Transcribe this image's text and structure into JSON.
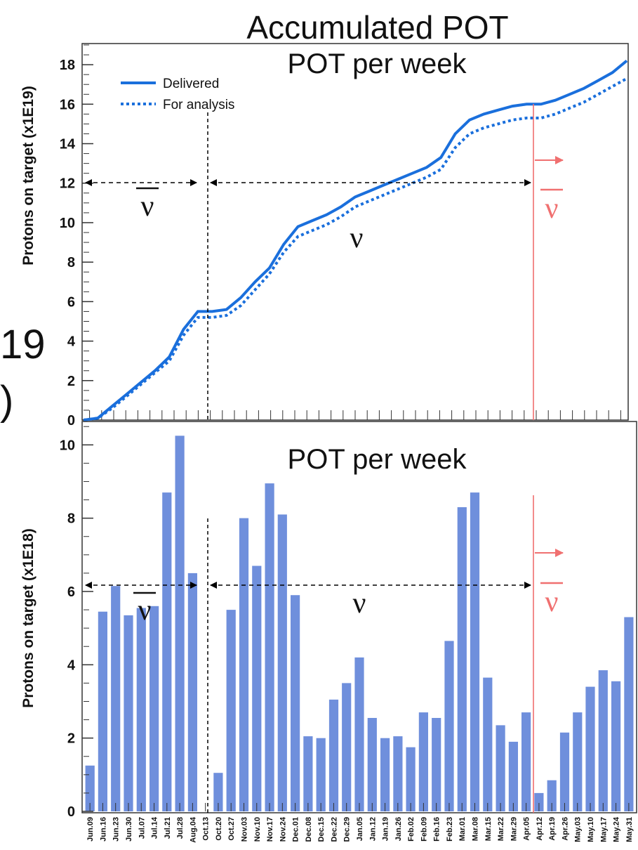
{
  "slide": {
    "title": "Accumulated POT",
    "left_fragment_1": "19",
    "left_fragment_2": ")"
  },
  "colors": {
    "line": "#1a6fdc",
    "bar": "#6f8fdc",
    "marker": "#f07070",
    "arrow": "#000000"
  },
  "chart_data": [
    {
      "type": "line",
      "title": "POT per week",
      "ylabel": "Protons on target (x1E19)",
      "xlabel": "",
      "ylim": [
        0,
        19
      ],
      "yticks": [
        0,
        2,
        4,
        6,
        8,
        10,
        12,
        14,
        16,
        18
      ],
      "grid": false,
      "legend": "top-left",
      "x_count": 45,
      "series": [
        {
          "name": "Delivered",
          "style": "solid",
          "values": [
            0.0,
            0.1,
            0.7,
            1.3,
            1.9,
            2.5,
            3.2,
            4.6,
            5.5,
            5.5,
            5.6,
            6.2,
            7.0,
            7.7,
            8.9,
            9.8,
            10.1,
            10.4,
            10.8,
            11.3,
            11.6,
            11.9,
            12.2,
            12.5,
            12.8,
            13.3,
            14.5,
            15.2,
            15.5,
            15.7,
            15.9,
            16.0,
            16.0,
            16.2,
            16.5,
            16.8,
            17.2,
            17.6,
            18.2
          ]
        },
        {
          "name": "For analysis",
          "style": "dotted",
          "values": [
            0.0,
            0.1,
            0.6,
            1.2,
            1.8,
            2.4,
            3.0,
            4.3,
            5.2,
            5.2,
            5.3,
            5.8,
            6.6,
            7.4,
            8.5,
            9.3,
            9.6,
            9.9,
            10.3,
            10.8,
            11.1,
            11.4,
            11.7,
            12.0,
            12.3,
            12.7,
            13.8,
            14.5,
            14.8,
            15.0,
            15.2,
            15.3,
            15.3,
            15.5,
            15.8,
            16.1,
            16.5,
            16.9,
            17.3
          ]
        }
      ],
      "annotations": {
        "nubar_left": "ν",
        "nu_middle": "ν",
        "nubar_right": "ν"
      }
    },
    {
      "type": "bar",
      "title": "POT per week",
      "ylabel": "Protons on target (x1E18)",
      "xlabel": "",
      "ylim": [
        0,
        10.6
      ],
      "yticks": [
        0,
        2,
        4,
        6,
        8,
        10
      ],
      "grid": false,
      "categories": [
        "Jun.09",
        "Jun.16",
        "Jun.23",
        "Jun.30",
        "Jul.07",
        "Jul.14",
        "Jul.21",
        "Jul.28",
        "Aug.04",
        "Oct.13",
        "Oct.20",
        "Oct.27",
        "Nov.03",
        "Nov.10",
        "Nov.17",
        "Nov.24",
        "Dec.01",
        "Dec.08",
        "Dec.15",
        "Dec.22",
        "Dec.29",
        "Jan.05",
        "Jan.12",
        "Jan.19",
        "Jan.26",
        "Feb.02",
        "Feb.09",
        "Feb.16",
        "Feb.23",
        "Mar.01",
        "Mar.08",
        "Mar.15",
        "Mar.22",
        "Mar.29",
        "Apr.05",
        "Apr.12",
        "Apr.19",
        "Apr.26",
        "May.03",
        "May.10",
        "May.17",
        "May.24",
        "May.31"
      ],
      "values": [
        1.25,
        5.45,
        6.15,
        5.35,
        5.55,
        5.6,
        8.7,
        10.25,
        6.5,
        0.0,
        1.05,
        5.5,
        8.0,
        6.7,
        8.95,
        8.1,
        5.9,
        2.05,
        2.0,
        3.05,
        3.5,
        4.2,
        2.55,
        2.0,
        2.05,
        1.75,
        2.7,
        2.55,
        4.65,
        8.3,
        8.7,
        3.65,
        2.35,
        1.9,
        2.7,
        0.5,
        0.85,
        2.15,
        2.7,
        3.4,
        3.85,
        3.55,
        5.3
      ],
      "annotations": {
        "nubar_left": "ν",
        "nu_middle": "ν",
        "nubar_right": "ν"
      }
    }
  ]
}
